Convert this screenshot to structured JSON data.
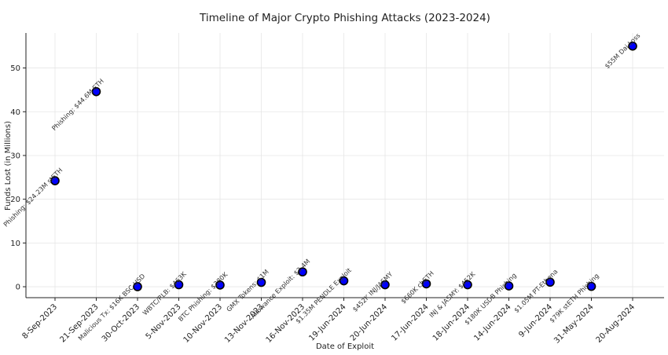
{
  "chart_data": {
    "type": "scatter",
    "title": "Timeline of Major Crypto Phishing Attacks (2023-2024)",
    "xlabel": "Date of Exploit",
    "ylabel": "Funds Lost (in Millions)",
    "ylim": [
      -2.5,
      58
    ],
    "yticks": [
      0,
      10,
      20,
      30,
      40,
      50
    ],
    "grid": true,
    "point_color": "#0000ff",
    "categories": [
      "8-Sep-2023",
      "21-Sep-2023",
      "30-Oct-2023",
      "5-Nov-2023",
      "10-Nov-2023",
      "13-Nov-2023",
      "16-Nov-2023",
      "19-Jun-2024",
      "20-Jun-2024",
      "17-Jun-2024",
      "18-Jun-2024",
      "14-Jun-2024",
      "9-Jun-2024",
      "31-May-2024",
      "20-Aug-2024"
    ],
    "values": [
      24.23,
      44.6,
      0.016,
      0.463,
      0.38,
      1.0,
      3.4,
      1.35,
      0.452,
      0.66,
      0.452,
      0.18,
      1.05,
      0.079,
      55.0
    ],
    "annotations": [
      "Phishing: $24.23M stETH",
      "Phishing: $44.6M ETH",
      "Malicious Tx: $16K BSC-USD",
      "WBTC/RLB: $463K",
      "BTC Phishing: $380K",
      "GMX Tokens: $1M",
      "Allowance Exploit: $3.4M",
      "$1.35M PENDLE Exploit",
      "$452K INJ/JASMY",
      "$660K cbETH",
      "INJ & JASMY: $452K",
      "$180K USDB Phishing",
      "$1.05M PT-Ethena",
      "$79K stETH Phishing",
      "$55M Dai Loss"
    ]
  }
}
